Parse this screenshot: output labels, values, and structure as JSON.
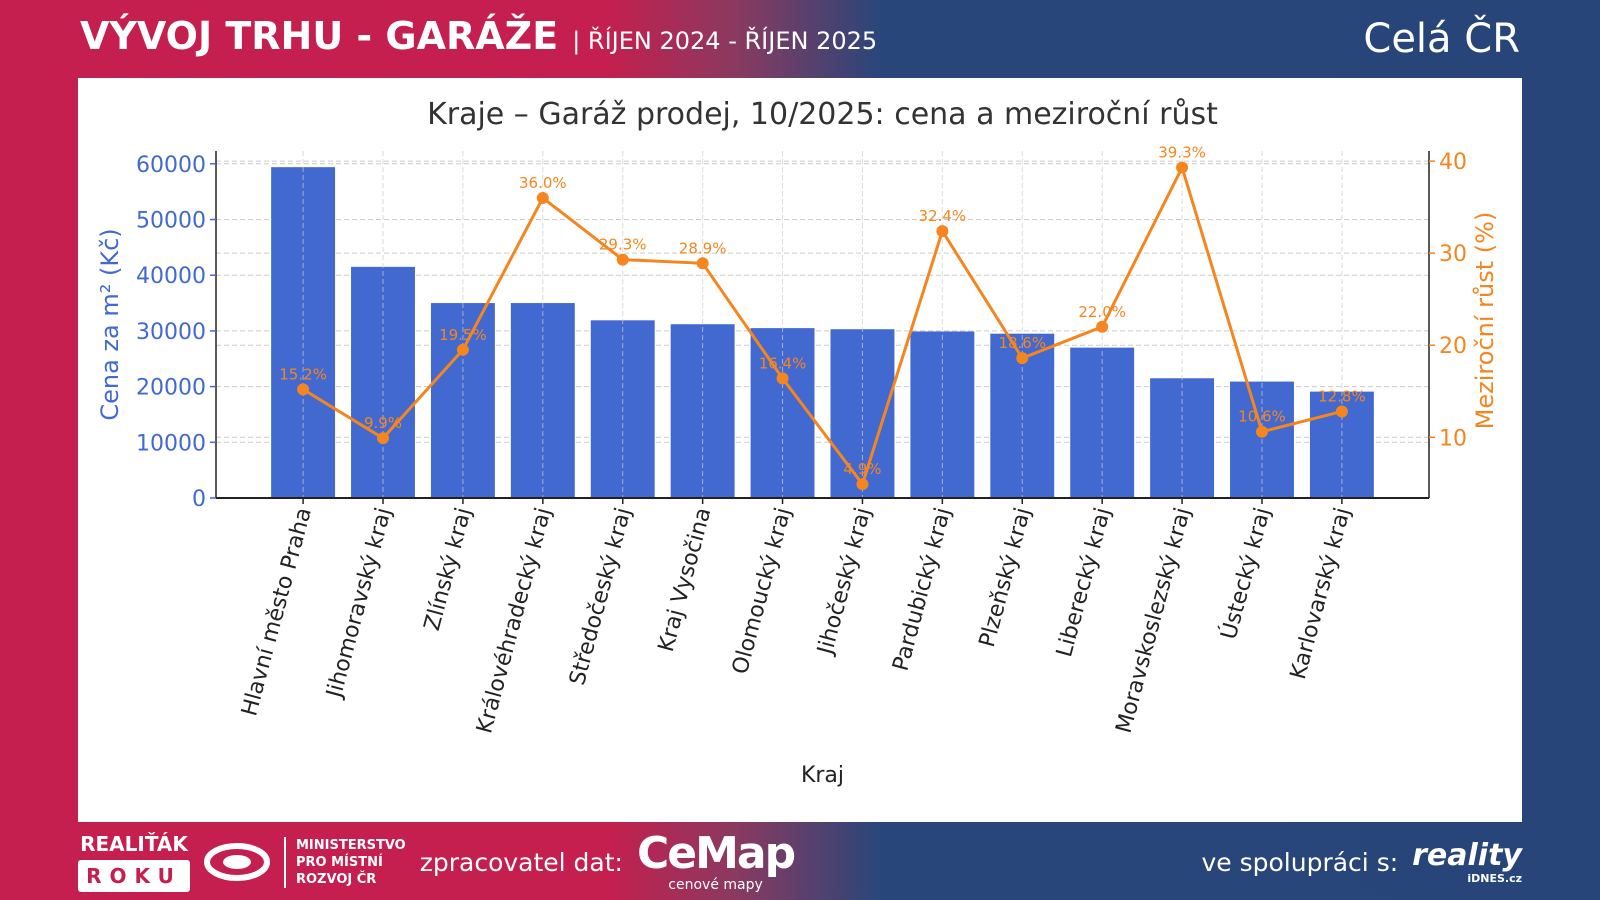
{
  "header": {
    "title": "VÝVOJ TRHU - GARÁŽE",
    "period": "| ŘÍJEN 2024 - ŘÍJEN 2025",
    "region": "Celá ČR"
  },
  "footer": {
    "realitak": "REALIŤÁK",
    "roku": "ROKU",
    "ministry": [
      "MINISTERSTVO",
      "PRO MÍSTNÍ",
      "ROZVOJ ČR"
    ],
    "processor_label": "zpracovatel dat:",
    "cemap": "CeMap",
    "cemap_sub": "cenové mapy",
    "partner_label": "ve spolupráci s:",
    "reality": "reality",
    "idnes": "iDNES.cz"
  },
  "colors": {
    "bar": "#4169d0",
    "line": "#f5861f",
    "left_axis": "#4169d0",
    "right_axis": "#f5861f"
  },
  "chart_data": {
    "type": "bar",
    "title": "Kraje – Garáž prodej, 10/2025: cena a meziroční růst",
    "xlabel": "Kraj",
    "ylabel": "Cena za m² (Kč)",
    "y2label": "Meziroční růst (%)",
    "categories": [
      "Hlavní město Praha",
      "Jihomoravský kraj",
      "Zlínský kraj",
      "Královéhradecký kraj",
      "Středočeský kraj",
      "Kraj Vysočina",
      "Olomoucký kraj",
      "Jihočeský kraj",
      "Pardubický kraj",
      "Plzeňský kraj",
      "Liberecký kraj",
      "Moravskoslezský kraj",
      "Ústecký kraj",
      "Karlovarský kraj"
    ],
    "series": [
      {
        "name": "Cena za m² (Kč)",
        "type": "bar",
        "axis": "left",
        "values": [
          59400,
          41500,
          35000,
          35000,
          31900,
          31200,
          30500,
          30300,
          29900,
          29500,
          27000,
          21500,
          20900,
          19100
        ]
      },
      {
        "name": "Meziroční růst (%)",
        "type": "line",
        "axis": "right",
        "values": [
          15.2,
          9.9,
          19.5,
          36.0,
          29.3,
          28.9,
          16.4,
          4.9,
          32.4,
          18.6,
          22.0,
          39.3,
          10.6,
          12.8
        ],
        "labels": [
          "15.2%",
          "9.9%",
          "19.5%",
          "36.0%",
          "29.3%",
          "28.9%",
          "16.4%",
          "4.9%",
          "32.4%",
          "18.6%",
          "22.0%",
          "39.3%",
          "10.6%",
          "12.8%"
        ]
      }
    ],
    "ylim": [
      0,
      62300
    ],
    "yticks": [
      0,
      10000,
      20000,
      30000,
      40000,
      50000,
      60000
    ],
    "y2lim": [
      3.4,
      41.1
    ],
    "y2ticks": [
      10,
      20,
      30,
      40
    ],
    "grid": true
  }
}
